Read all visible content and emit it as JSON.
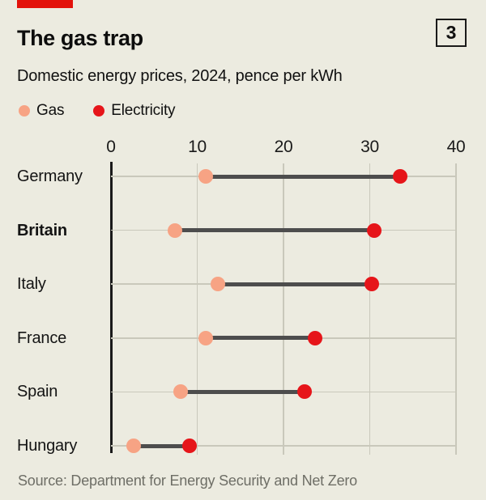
{
  "header": {
    "title": "The gas trap",
    "panel_number": "3",
    "subtitle": "Domestic energy prices, 2024, pence per kWh"
  },
  "legend": [
    {
      "label": "Gas",
      "color": "#f7a384"
    },
    {
      "label": "Electricity",
      "color": "#e6151a"
    }
  ],
  "chart_data": {
    "type": "scatter",
    "variant": "dumbbell",
    "title": "The gas trap",
    "subtitle": "Domestic energy prices, 2024, pence per kWh",
    "categories": [
      "Germany",
      "Britain",
      "Italy",
      "France",
      "Spain",
      "Hungary"
    ],
    "emphasized_category": "Britain",
    "series": [
      {
        "name": "Gas",
        "color": "#f7a384",
        "values": [
          11.0,
          7.4,
          12.4,
          11.0,
          8.1,
          2.6
        ]
      },
      {
        "name": "Electricity",
        "color": "#e6151a",
        "values": [
          33.5,
          30.5,
          30.2,
          23.7,
          22.4,
          9.1
        ]
      }
    ],
    "xlim": [
      0,
      40
    ],
    "xticks": [
      0,
      10,
      20,
      30,
      40
    ],
    "xlabel": "",
    "ylabel": "",
    "grid": "vertical gridlines plus one horizontal line per category",
    "legend_position": "top-left",
    "connector_style": "dark grey line between gas and electricity dots"
  },
  "source": "Source: Department for Energy Security and Net Zero",
  "colors": {
    "background": "#ecebe0",
    "accent_red": "#e3120b",
    "gas": "#f7a384",
    "electricity": "#e6151a",
    "connector": "#4d4d4d",
    "gridline": "#c9c8bb",
    "axis": "#1a1a1a",
    "text": "#0d0d0d",
    "source_text": "#6e6e66"
  }
}
